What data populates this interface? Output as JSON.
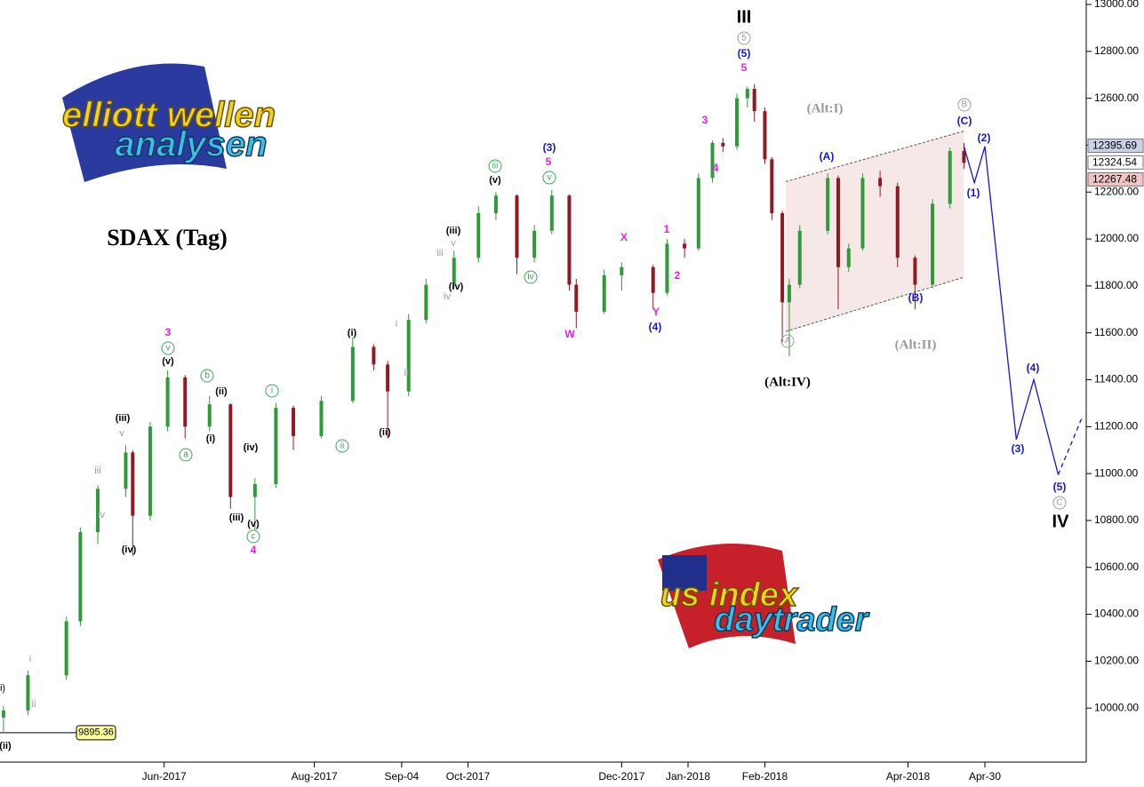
{
  "chart_data": {
    "type": "candlestick",
    "title": "SDAX (Tag)",
    "xlim": [
      0,
      310
    ],
    "ylim": [
      9800,
      13000
    ],
    "xticks": [
      {
        "value": 47,
        "label": "Jun-2017"
      },
      {
        "value": 90,
        "label": "Aug-2017"
      },
      {
        "value": 115,
        "label": "Sep-04"
      },
      {
        "value": 134,
        "label": "Oct-2017"
      },
      {
        "value": 178,
        "label": "Dec-2017"
      },
      {
        "value": 197,
        "label": "Jan-2018"
      },
      {
        "value": 219,
        "label": "Feb-2018"
      },
      {
        "value": 260,
        "label": "Apr-2018"
      },
      {
        "value": 282,
        "label": "Apr-30"
      }
    ],
    "yticks": [
      {
        "value": 10000,
        "label": "10000.00"
      },
      {
        "value": 10200,
        "label": "10200.00"
      },
      {
        "value": 10400,
        "label": "10400.00"
      },
      {
        "value": 10600,
        "label": "10600.00"
      },
      {
        "value": 10800,
        "label": "10800.00"
      },
      {
        "value": 11000,
        "label": "11000.00"
      },
      {
        "value": 11200,
        "label": "11200.00"
      },
      {
        "value": 11400,
        "label": "11400.00"
      },
      {
        "value": 11600,
        "label": "11600.00"
      },
      {
        "value": 11800,
        "label": "11800.00"
      },
      {
        "value": 12000,
        "label": "12000.00"
      },
      {
        "value": 12200,
        "label": "12200.00"
      },
      {
        "value": 12400,
        "label": "12400.00"
      },
      {
        "value": 12600,
        "label": "12600.00"
      },
      {
        "value": 12800,
        "label": "12800.00"
      },
      {
        "value": 13000,
        "label": "13000.00"
      }
    ],
    "up_color": "#2f9a3a",
    "down_color": "#8e1b24",
    "x": [
      1,
      8,
      19,
      23,
      28,
      36,
      38,
      43,
      48,
      53,
      60,
      66,
      73,
      79,
      84,
      92,
      101,
      107,
      111,
      117,
      122,
      130,
      137,
      142,
      148,
      153,
      158,
      163,
      165,
      173,
      178,
      187,
      191,
      196,
      200,
      204,
      207,
      211,
      214,
      216,
      219,
      221,
      224,
      226,
      229,
      237,
      240,
      243,
      247,
      252,
      257,
      262,
      267,
      272,
      276
    ],
    "open": [
      9960,
      9990,
      10140,
      10370,
      10750,
      10935,
      11090,
      10820,
      11200,
      11410,
      11200,
      11295,
      10900,
      10955,
      11280,
      11160,
      11310,
      11540,
      11465,
      11350,
      11655,
      11805,
      11920,
      12110,
      12185,
      11920,
      12035,
      12185,
      11805,
      11690,
      11845,
      11880,
      11770,
      11980,
      11960,
      12260,
      12410,
      12395,
      12600,
      12640,
      12545,
      12340,
      12110,
      11730,
      11805,
      12035,
      12260,
      11880,
      11960,
      12260,
      12225,
      11920,
      11805,
      12150,
      12375
    ],
    "high": [
      10010,
      10160,
      10390,
      10770,
      10950,
      11120,
      11100,
      11220,
      11440,
      11420,
      11330,
      11300,
      10980,
      11300,
      11290,
      11330,
      11580,
      11550,
      11480,
      11680,
      11830,
      11950,
      12140,
      12200,
      12190,
      12060,
      12210,
      12190,
      11830,
      11870,
      11900,
      11890,
      12000,
      12000,
      12280,
      12420,
      12430,
      12620,
      12650,
      12660,
      12560,
      12350,
      12120,
      11830,
      12060,
      12280,
      12270,
      11980,
      12280,
      12290,
      12240,
      11930,
      12170,
      12390,
      12410
    ],
    "low": [
      9900,
      9970,
      10120,
      10350,
      10700,
      10900,
      10650,
      10800,
      11180,
      11150,
      11180,
      10850,
      10760,
      10940,
      11100,
      11150,
      11300,
      11440,
      11150,
      11330,
      11640,
      11790,
      11900,
      12080,
      11850,
      11900,
      12020,
      11780,
      11620,
      11680,
      11780,
      11700,
      11760,
      11920,
      11950,
      12240,
      12370,
      12380,
      12560,
      12500,
      12320,
      12080,
      11560,
      11500,
      11790,
      12020,
      11700,
      11860,
      11950,
      12180,
      11880,
      11700,
      11790,
      12130,
      12300
    ],
    "close": [
      9990,
      10140,
      10370,
      10750,
      10935,
      11090,
      10820,
      11200,
      11410,
      11200,
      11295,
      10900,
      10955,
      11280,
      11160,
      11310,
      11540,
      11465,
      11350,
      11655,
      11805,
      11920,
      12110,
      12185,
      11920,
      12035,
      12185,
      11805,
      11690,
      11845,
      11880,
      11770,
      11980,
      11960,
      12260,
      12410,
      12395,
      12600,
      12640,
      12545,
      12340,
      12110,
      11730,
      11805,
      12035,
      12260,
      11880,
      11960,
      12260,
      12225,
      11920,
      11805,
      12150,
      12375,
      12324.54
    ],
    "projection": {
      "color": "#1515d8",
      "x": [
        276,
        279,
        282,
        291,
        296,
        303
      ],
      "values": [
        12395,
        12240,
        12395,
        11145,
        11400,
        10995
      ]
    },
    "projection_dashed": {
      "color": "#1515d8",
      "x": [
        303,
        310
      ],
      "values": [
        10995,
        11245
      ]
    },
    "channel": {
      "color": "#f3dede",
      "x": [
        225,
        276
      ],
      "upper": [
        12245,
        12460
      ],
      "lower": [
        11606,
        11837
      ]
    },
    "price_labels": [
      12395.69,
      12324.54,
      12267.48
    ],
    "low_marker": 9895.36,
    "annotations": [
      {
        "text": "III",
        "color": "#000"
      },
      {
        "text": "IV",
        "color": "#000"
      },
      {
        "text": "(Alt:IV)",
        "color": "#000"
      },
      {
        "text": "(Alt:I)",
        "color": "#999"
      },
      {
        "text": "(Alt:II)",
        "color": "#999"
      },
      {
        "text": "3",
        "color": "#e61ee6"
      },
      {
        "text": "4",
        "color": "#e61ee6"
      },
      {
        "text": "5",
        "color": "#e61ee6"
      },
      {
        "text": "X",
        "color": "#e61ee6"
      },
      {
        "text": "W",
        "color": "#e61ee6"
      },
      {
        "text": "Y",
        "color": "#e61ee6"
      },
      {
        "text": "1",
        "color": "#e61ee6"
      },
      {
        "text": "2",
        "color": "#e61ee6"
      },
      {
        "text": "3",
        "color": "#e61ee6"
      },
      {
        "text": "4",
        "color": "#e61ee6"
      },
      {
        "text": "5",
        "color": "#e61ee6"
      },
      {
        "text": "(3)",
        "color": "#1515d8"
      },
      {
        "text": "(4)",
        "color": "#1515d8"
      },
      {
        "text": "(5)",
        "color": "#1515d8"
      },
      {
        "text": "(A)",
        "color": "#1515d8"
      },
      {
        "text": "(B)",
        "color": "#1515d8"
      },
      {
        "text": "(C)",
        "color": "#1515d8"
      },
      {
        "text": "(1)",
        "color": "#1515d8"
      },
      {
        "text": "(2)",
        "color": "#1515d8"
      },
      {
        "text": "(3)",
        "color": "#1515d8"
      },
      {
        "text": "(4)",
        "color": "#1515d8"
      },
      {
        "text": "(5)",
        "color": "#1515d8"
      },
      {
        "text": "5",
        "color": "#999",
        "circled": true
      },
      {
        "text": "A",
        "color": "#999",
        "circled": true
      },
      {
        "text": "B",
        "color": "#999",
        "circled": true
      },
      {
        "text": "C",
        "color": "#999",
        "circled": true
      },
      {
        "text": "v",
        "color": "#3aa55a",
        "circled": true
      },
      {
        "text": "b",
        "color": "#3aa55a",
        "circled": true
      },
      {
        "text": "a",
        "color": "#3aa55a",
        "circled": true
      },
      {
        "text": "c",
        "color": "#3aa55a",
        "circled": true
      },
      {
        "text": "i",
        "color": "#3aa55a",
        "circled": true
      },
      {
        "text": "ii",
        "color": "#3aa55a",
        "circled": true
      },
      {
        "text": "iii",
        "color": "#3aa55a",
        "circled": true
      },
      {
        "text": "v",
        "color": "#3aa55a",
        "circled": true
      },
      {
        "text": "iv",
        "color": "#3aa55a",
        "circled": true
      },
      {
        "text": "(v)",
        "color": "#000"
      },
      {
        "text": "(ii)",
        "color": "#000"
      },
      {
        "text": "(i)",
        "color": "#000"
      },
      {
        "text": "(iii)",
        "color": "#000"
      },
      {
        "text": "(iv)",
        "color": "#000"
      },
      {
        "text": "(iii)",
        "color": "#000"
      },
      {
        "text": "(iv)",
        "color": "#000"
      },
      {
        "text": "(v)",
        "color": "#000"
      },
      {
        "text": "(i)",
        "color": "#000"
      },
      {
        "text": "(ii)",
        "color": "#000"
      },
      {
        "text": "(iii)",
        "color": "#000"
      },
      {
        "text": "(v)",
        "color": "#000"
      },
      {
        "text": "(iv)",
        "color": "#000"
      },
      {
        "text": "(ii)",
        "color": "#000"
      },
      {
        "text": "i)",
        "color": "#000"
      },
      {
        "text": "v",
        "color": "#999"
      },
      {
        "text": "iii",
        "color": "#999"
      },
      {
        "text": "iv",
        "color": "#999"
      },
      {
        "text": "i",
        "color": "#999"
      },
      {
        "text": "ii",
        "color": "#999"
      },
      {
        "text": "i",
        "color": "#999"
      },
      {
        "text": "ii",
        "color": "#999"
      },
      {
        "text": "v",
        "color": "#999"
      },
      {
        "text": "iii",
        "color": "#999"
      },
      {
        "text": "iv",
        "color": "#999"
      }
    ],
    "logos": [
      {
        "line1": "elliott wellen",
        "line2": "analysen"
      },
      {
        "line1": "us index",
        "line2": "daytrader"
      }
    ]
  }
}
